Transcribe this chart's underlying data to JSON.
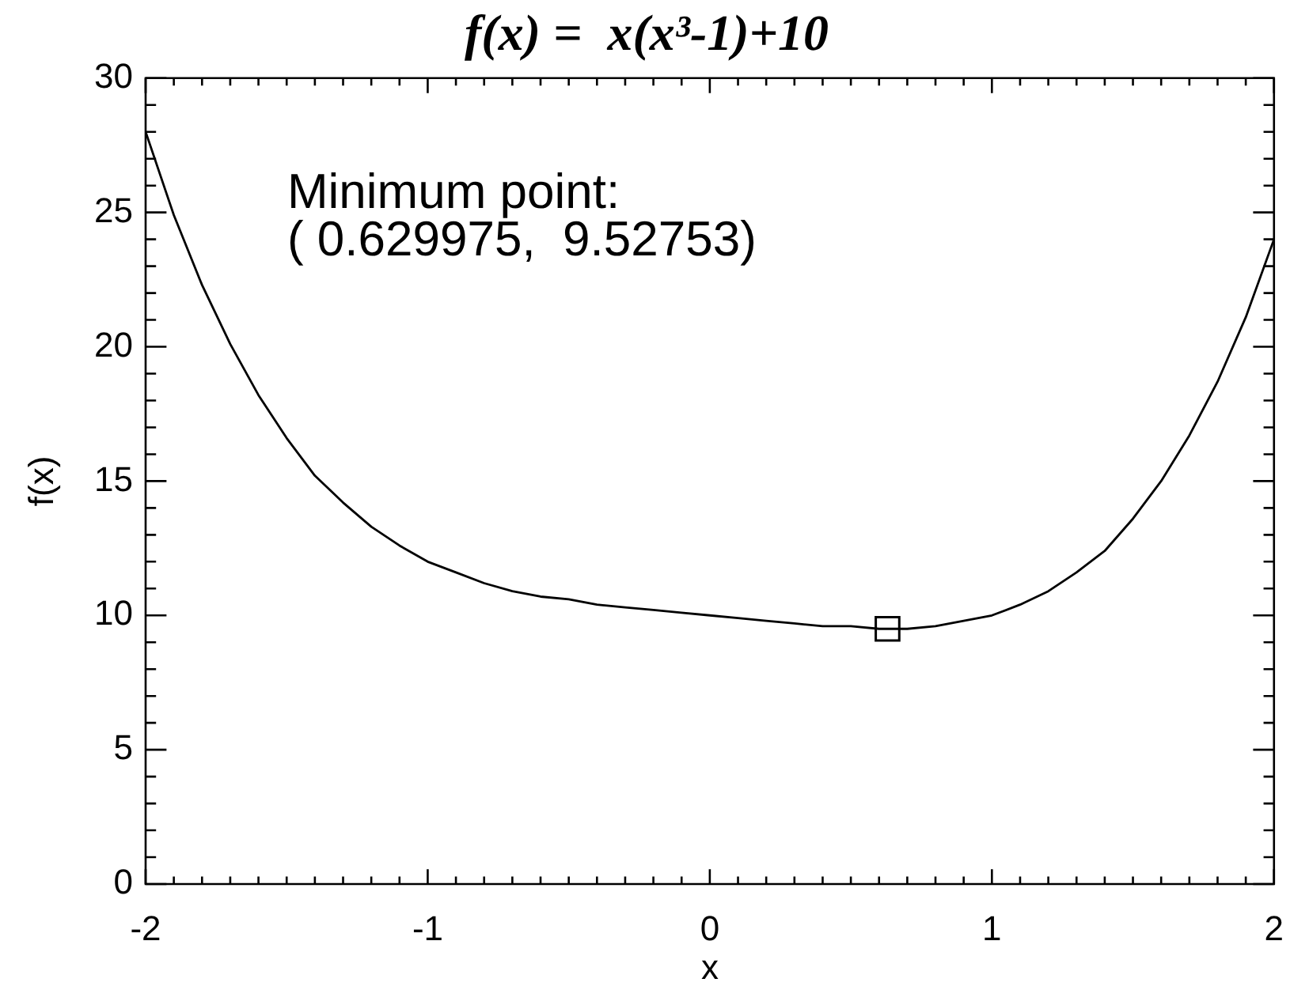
{
  "chart_data": {
    "type": "line",
    "title": "f(x) =  x(x³-1)+10",
    "xlabel": "x",
    "ylabel": "f(x)",
    "annotations": [
      "Minimum point:",
      "( 0.629975,  9.52753)"
    ],
    "xlim": [
      -2,
      2
    ],
    "ylim": [
      0,
      30
    ],
    "xticks": [
      -2,
      {
        "value": -1.9,
        "label": null
      },
      {
        "value": -1.8,
        "label": null
      },
      {
        "value": -1.7,
        "label": null
      },
      {
        "value": -1.6,
        "label": null
      },
      {
        "value": -1.5,
        "label": null
      },
      {
        "value": -1.4,
        "label": null
      },
      {
        "value": -1.3,
        "label": null
      },
      {
        "value": -1.2,
        "label": null
      },
      {
        "value": -1.1,
        "label": null
      },
      -1,
      {
        "value": -0.9,
        "label": null
      },
      {
        "value": -0.8,
        "label": null
      },
      {
        "value": -0.7,
        "label": null
      },
      {
        "value": -0.6,
        "label": null
      },
      {
        "value": -0.5,
        "label": null
      },
      {
        "value": -0.4,
        "label": null
      },
      {
        "value": -0.3,
        "label": null
      },
      {
        "value": -0.2,
        "label": null
      },
      {
        "value": -0.1,
        "label": null
      },
      0,
      {
        "value": 0.1,
        "label": null
      },
      {
        "value": 0.2,
        "label": null
      },
      {
        "value": 0.3,
        "label": null
      },
      {
        "value": 0.4,
        "label": null
      },
      {
        "value": 0.5,
        "label": null
      },
      {
        "value": 0.6,
        "label": null
      },
      {
        "value": 0.7,
        "label": null
      },
      {
        "value": 0.8,
        "label": null
      },
      {
        "value": 0.9,
        "label": null
      },
      1,
      {
        "value": 1.1,
        "label": null
      },
      {
        "value": 1.2,
        "label": null
      },
      {
        "value": 1.3,
        "label": null
      },
      {
        "value": 1.4,
        "label": null
      },
      {
        "value": 1.5,
        "label": null
      },
      {
        "value": 1.6,
        "label": null
      },
      {
        "value": 1.7,
        "label": null
      },
      {
        "value": 1.8,
        "label": null
      },
      {
        "value": 1.9,
        "label": null
      },
      2
    ],
    "yticks": [
      0,
      {
        "value": 1,
        "label": null
      },
      {
        "value": 2,
        "label": null
      },
      {
        "value": 3,
        "label": null
      },
      {
        "value": 4,
        "label": null
      },
      5,
      {
        "value": 6,
        "label": null
      },
      {
        "value": 7,
        "label": null
      },
      {
        "value": 8,
        "label": null
      },
      {
        "value": 9,
        "label": null
      },
      10,
      {
        "value": 11,
        "label": null
      },
      {
        "value": 12,
        "label": null
      },
      {
        "value": 13,
        "label": null
      },
      {
        "value": 14,
        "label": null
      },
      15,
      {
        "value": 16,
        "label": null
      },
      {
        "value": 17,
        "label": null
      },
      {
        "value": 18,
        "label": null
      },
      {
        "value": 19,
        "label": null
      },
      20,
      {
        "value": 21,
        "label": null
      },
      {
        "value": 22,
        "label": null
      },
      {
        "value": 23,
        "label": null
      },
      {
        "value": 24,
        "label": null
      },
      25,
      {
        "value": 26,
        "label": null
      },
      {
        "value": 27,
        "label": null
      },
      {
        "value": 28,
        "label": null
      },
      {
        "value": 29,
        "label": null
      },
      30
    ],
    "series": [
      {
        "color": "#000000",
        "x": [
          -2,
          -1.9,
          -1.8,
          -1.7,
          -1.6,
          -1.5,
          -1.4,
          -1.3,
          -1.2,
          -1.1,
          -1,
          -0.9,
          -0.8,
          -0.7,
          -0.6,
          -0.5,
          -0.4,
          -0.3,
          -0.2,
          -0.1,
          0,
          0.1,
          0.2,
          0.3,
          0.4,
          0.5,
          0.6,
          0.7,
          0.8,
          0.9,
          1,
          1.1,
          1.2,
          1.3,
          1.4,
          1.5,
          1.6,
          1.7,
          1.8,
          1.9,
          2
        ],
        "values": [
          28,
          24.9,
          22.3,
          20.1,
          18.2,
          16.6,
          15.2,
          14.2,
          13.3,
          12.6,
          12,
          11.6,
          11.2,
          10.9,
          10.7,
          10.6,
          10.4,
          10.3,
          10.2,
          10.1,
          10,
          9.9,
          9.8,
          9.7,
          9.6,
          9.6,
          9.5,
          9.5,
          9.6,
          9.8,
          10,
          10.4,
          10.9,
          11.6,
          12.4,
          13.6,
          15,
          16.7,
          18.7,
          21.1,
          24
        ]
      },
      {
        "type": "scatter",
        "color": "#000000",
        "marker": "square",
        "x": [
          0.63
        ],
        "values": [
          9.5
        ]
      }
    ]
  }
}
